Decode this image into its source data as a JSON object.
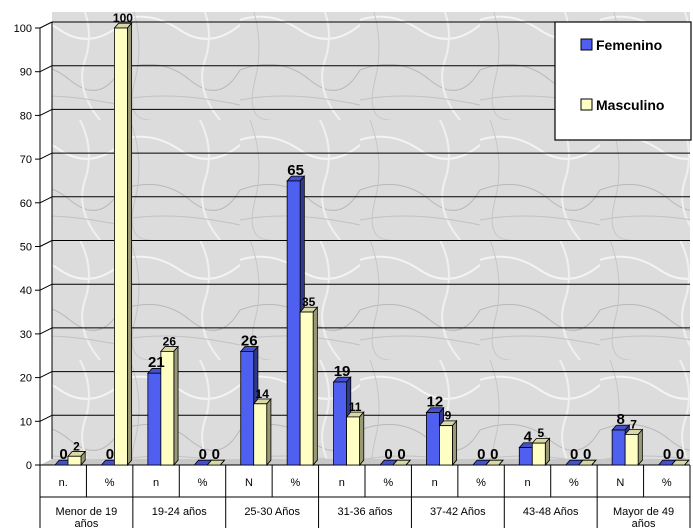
{
  "chart_data": {
    "type": "bar",
    "title": "",
    "xlabel": "",
    "ylabel": "",
    "ylim": [
      0,
      100
    ],
    "yticks": [
      "0",
      "10",
      "20",
      "30",
      "40",
      "50",
      "60",
      "70",
      "80",
      "90",
      "100"
    ],
    "grid": true,
    "legend_position": "top-right",
    "categories": [
      "n.",
      "%",
      "n",
      "%",
      "N",
      "%",
      "n",
      "%",
      "n",
      "%",
      "n",
      "%",
      "N",
      "%"
    ],
    "groups": [
      {
        "label": "Menor de 19 años",
        "lines": [
          "Menor de 19",
          "años"
        ]
      },
      {
        "label": "19-24 años",
        "lines": [
          "19-24 años"
        ]
      },
      {
        "label": "25-30 Años",
        "lines": [
          "25-30 Años"
        ]
      },
      {
        "label": "31-36 años",
        "lines": [
          "31-36 años"
        ]
      },
      {
        "label": "37-42 Años",
        "lines": [
          "37-42 Años"
        ]
      },
      {
        "label": "43-48 Años",
        "lines": [
          "43-48 Años"
        ]
      },
      {
        "label": "Mayor de 49 años",
        "lines": [
          "Mayor de 49",
          "años"
        ]
      }
    ],
    "series": [
      {
        "name": "Femenino",
        "color": "#4f5ff0",
        "values": [
          0,
          0,
          21,
          0,
          26,
          65,
          19,
          0,
          12,
          0,
          4,
          0,
          8,
          0
        ]
      },
      {
        "name": "Masculino",
        "color": "#ffffc4",
        "values": [
          2,
          100,
          26,
          0,
          14,
          35,
          11,
          0,
          9,
          0,
          5,
          0,
          7,
          0
        ]
      }
    ]
  }
}
